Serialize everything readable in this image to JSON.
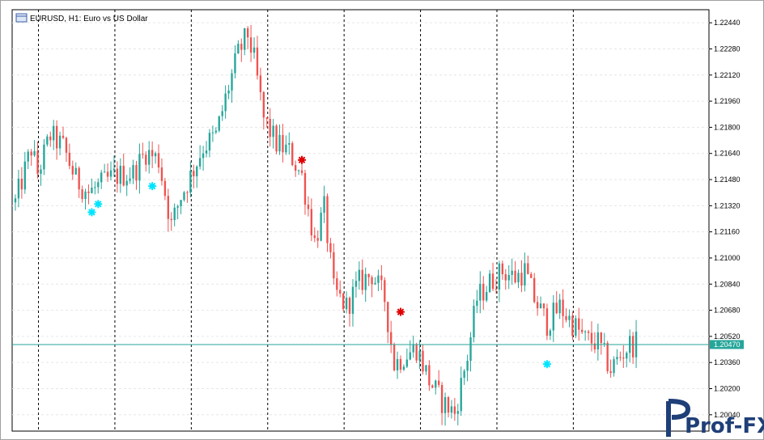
{
  "window": {
    "title": "EURUSD, H1:  Euro vs US Dollar"
  },
  "watermark": {
    "text": "Prof-FX"
  },
  "colors": {
    "background": "#ffffff",
    "bull": "#26a69a",
    "bear": "#ef5350",
    "grid": "#e6e6e6",
    "session_separator": "#000000",
    "current_price_line": "#26a69a",
    "current_price_label_bg": "#26a69a",
    "current_price_label_text": "#ffffff",
    "arrow_up": "#00e5ff",
    "arrow_down": "#e00000",
    "axis": "#000000",
    "logo": "#1f3f78"
  },
  "chart_data": {
    "type": "candlestick",
    "symbol": "EURUSD",
    "timeframe": "H1",
    "ylim": [
      1.1994,
      1.2252
    ],
    "y_ticks": [
      "1.22440",
      "1.22280",
      "1.22120",
      "1.21960",
      "1.21800",
      "1.21640",
      "1.21480",
      "1.21320",
      "1.21160",
      "1.21000",
      "1.20840",
      "1.20680",
      "1.20520",
      "1.20360",
      "1.20200",
      "1.20040"
    ],
    "current_price": "1.20470",
    "candle_count": 196,
    "session_separators": [
      7,
      31,
      55,
      79,
      103,
      127,
      151,
      175
    ],
    "candles": [],
    "signals_up": [
      {
        "bar": 24,
        "price": 1.2128
      },
      {
        "bar": 26,
        "price": 1.2133
      },
      {
        "bar": 43,
        "price": 1.2144
      },
      {
        "bar": 167,
        "price": 1.2035
      }
    ],
    "signals_down": [
      {
        "bar": 90,
        "price": 1.216
      },
      {
        "bar": 121,
        "price": 1.2067
      }
    ],
    "anchors": [
      [
        0,
        1.2134
      ],
      [
        5,
        1.2167
      ],
      [
        7,
        1.2152
      ],
      [
        11,
        1.2175
      ],
      [
        15,
        1.2168
      ],
      [
        19,
        1.2148
      ],
      [
        23,
        1.214
      ],
      [
        27,
        1.2145
      ],
      [
        31,
        1.215
      ],
      [
        37,
        1.2152
      ],
      [
        41,
        1.2165
      ],
      [
        45,
        1.216
      ],
      [
        49,
        1.212
      ],
      [
        52,
        1.2138
      ],
      [
        55,
        1.215
      ],
      [
        59,
        1.2168
      ],
      [
        63,
        1.2175
      ],
      [
        67,
        1.2205
      ],
      [
        70,
        1.2225
      ],
      [
        73,
        1.2237
      ],
      [
        75,
        1.2221
      ],
      [
        78,
        1.2185
      ],
      [
        82,
        1.217
      ],
      [
        86,
        1.2165
      ],
      [
        90,
        1.215
      ],
      [
        94,
        1.211
      ],
      [
        97,
        1.213
      ],
      [
        100,
        1.208
      ],
      [
        104,
        1.207
      ],
      [
        108,
        1.2085
      ],
      [
        112,
        1.209
      ],
      [
        116,
        1.2075
      ],
      [
        119,
        1.2035
      ],
      [
        122,
        1.204
      ],
      [
        126,
        1.2045
      ],
      [
        130,
        1.2025
      ],
      [
        134,
        1.2012
      ],
      [
        138,
        1.2005
      ],
      [
        142,
        1.204
      ],
      [
        145,
        1.2075
      ],
      [
        149,
        1.2085
      ],
      [
        153,
        1.2092
      ],
      [
        157,
        1.2088
      ],
      [
        160,
        1.2092
      ],
      [
        163,
        1.2075
      ],
      [
        167,
        1.206
      ],
      [
        171,
        1.207
      ],
      [
        175,
        1.206
      ],
      [
        179,
        1.205
      ],
      [
        183,
        1.2048
      ],
      [
        187,
        1.2032
      ],
      [
        190,
        1.204
      ],
      [
        193,
        1.2047
      ],
      [
        195,
        1.2047
      ]
    ]
  }
}
